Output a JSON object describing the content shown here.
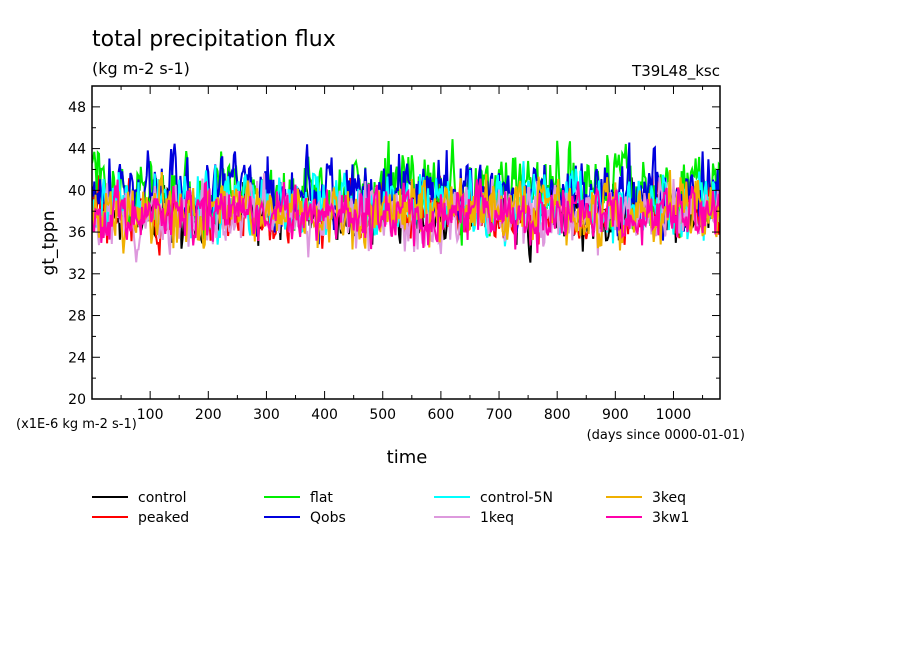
{
  "chart_data": {
    "type": "line",
    "title": "total precipitation flux",
    "subtitle": "(kg m-2 s-1)",
    "run_label": "T39L48_ksc",
    "xlabel": "time",
    "x_unit_note": "(days since 0000-01-01)",
    "ylabel": "gt_tppn",
    "y_unit_note": "(x1E-6 kg m-2 s-1)",
    "xlim": [
      0,
      1080
    ],
    "ylim": [
      20,
      50
    ],
    "x_ticks": [
      100,
      200,
      300,
      400,
      500,
      600,
      700,
      800,
      900,
      1000
    ],
    "y_ticks": [
      20,
      24,
      28,
      32,
      36,
      40,
      44,
      48
    ],
    "grid": false,
    "legend_placement": "bottom",
    "series": [
      {
        "name": "control",
        "color": "#000000",
        "mean": 37.8,
        "amp": 2.0,
        "seed": 11
      },
      {
        "name": "peaked",
        "color": "#ff0000",
        "mean": 37.9,
        "amp": 2.0,
        "seed": 23
      },
      {
        "name": "flat",
        "color": "#00ee00",
        "mean": 39.9,
        "amp": 2.6,
        "seed": 37
      },
      {
        "name": "Qobs",
        "color": "#0000dd",
        "mean": 39.7,
        "amp": 2.5,
        "seed": 41
      },
      {
        "name": "control-5N",
        "color": "#00ffff",
        "mean": 38.6,
        "amp": 2.2,
        "seed": 53
      },
      {
        "name": "1keq",
        "color": "#dd99dd",
        "mean": 37.6,
        "amp": 2.1,
        "seed": 67
      },
      {
        "name": "3keq",
        "color": "#f0b000",
        "mean": 37.9,
        "amp": 2.2,
        "seed": 79
      },
      {
        "name": "3kw1",
        "color": "#ff00aa",
        "mean": 37.8,
        "amp": 2.1,
        "seed": 83
      }
    ]
  }
}
